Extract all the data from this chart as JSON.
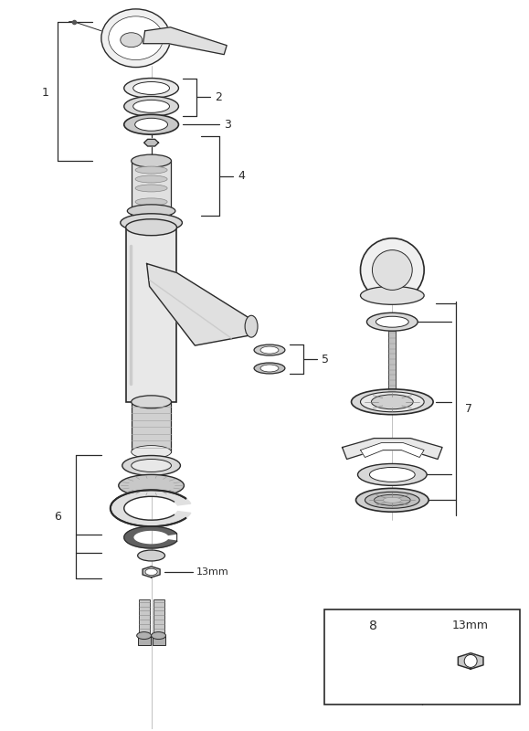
{
  "bg_color": "#ffffff",
  "line_color": "#2a2a2a",
  "label_color": "#2a2a2a",
  "fig_width": 5.79,
  "fig_height": 8.0,
  "dpi": 100
}
